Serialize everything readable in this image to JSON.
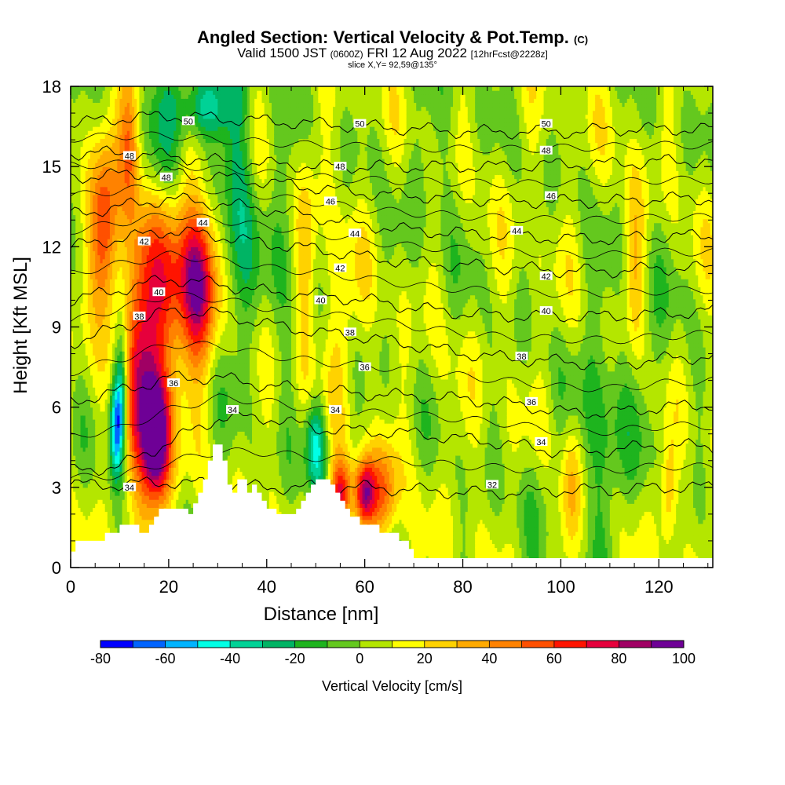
{
  "header": {
    "title_main": "Angled Section: Vertical Velocity & Pot.Temp.",
    "title_unit": "(C)",
    "valid_prefix": "Valid 1500 JST",
    "valid_z": "(0600Z)",
    "valid_date": "FRI 12 Aug 2022",
    "valid_fcst": "[12hrFcst@2228z]",
    "slice": "slice X,Y= 92,59@135°"
  },
  "chart_data": {
    "type": "heatmap",
    "title": "Angled Section: Vertical Velocity & Pot.Temp. (C)",
    "xlabel": "Distance [nm]",
    "ylabel": "Height [Kft MSL]",
    "xlim": [
      0,
      131
    ],
    "ylim": [
      0,
      18
    ],
    "x_ticks": [
      "0",
      "20",
      "40",
      "60",
      "80",
      "100",
      "120"
    ],
    "y_ticks": [
      "0",
      "3",
      "6",
      "9",
      "12",
      "15",
      "18"
    ],
    "x_tick_values": [
      0,
      20,
      40,
      60,
      80,
      100,
      120
    ],
    "y_tick_values": [
      0,
      3,
      6,
      9,
      12,
      15,
      18
    ],
    "colorbar": {
      "title": "Vertical Velocity [cm/s]",
      "min": -80,
      "max": 100,
      "step": 10,
      "labels": [
        "-80",
        "-60",
        "-40",
        "-20",
        "0",
        "20",
        "40",
        "60",
        "80",
        "100"
      ],
      "label_values": [
        -80,
        -60,
        -40,
        -20,
        0,
        20,
        40,
        60,
        80,
        100
      ],
      "colors": [
        "#0000ff",
        "#0064ff",
        "#00b4ff",
        "#00ffe6",
        "#00d296",
        "#00b464",
        "#1eb41e",
        "#64c81e",
        "#b4e600",
        "#ffff00",
        "#ffd200",
        "#ffaa00",
        "#ff8200",
        "#ff5000",
        "#ff1400",
        "#e6003c",
        "#a00064",
        "#6e0096"
      ]
    },
    "terrain": [
      [
        0,
        0.6
      ],
      [
        1,
        1.0
      ],
      [
        6,
        1.0
      ],
      [
        7,
        1.3
      ],
      [
        10,
        1.6
      ],
      [
        13,
        1.6
      ],
      [
        14,
        1.3
      ],
      [
        15,
        1.3
      ],
      [
        16,
        1.6
      ],
      [
        17,
        1.9
      ],
      [
        18,
        2.2
      ],
      [
        23,
        2.2
      ],
      [
        24,
        2.0
      ],
      [
        25,
        2.4
      ],
      [
        26,
        2.8
      ],
      [
        27,
        3.3
      ],
      [
        28,
        4.0
      ],
      [
        29,
        4.6
      ],
      [
        30,
        4.6
      ],
      [
        31,
        4.0
      ],
      [
        32,
        3.1
      ],
      [
        33,
        2.8
      ],
      [
        34,
        3.3
      ],
      [
        35,
        3.3
      ],
      [
        36,
        2.8
      ],
      [
        37,
        3.1
      ],
      [
        38,
        2.8
      ],
      [
        39,
        2.5
      ],
      [
        40,
        2.2
      ],
      [
        41,
        2.2
      ],
      [
        42,
        2.0
      ],
      [
        45,
        2.0
      ],
      [
        46,
        2.2
      ],
      [
        47,
        2.5
      ],
      [
        48,
        2.8
      ],
      [
        49,
        3.1
      ],
      [
        50,
        3.3
      ],
      [
        52,
        3.3
      ],
      [
        53,
        3.1
      ],
      [
        54,
        2.8
      ],
      [
        55,
        2.5
      ],
      [
        56,
        2.2
      ],
      [
        57,
        1.9
      ],
      [
        58,
        1.9
      ],
      [
        59,
        1.6
      ],
      [
        62,
        1.6
      ],
      [
        63,
        1.3
      ],
      [
        66,
        1.3
      ],
      [
        67,
        1.0
      ],
      [
        69,
        0.7
      ],
      [
        70,
        0.35
      ],
      [
        131,
        0.35
      ]
    ],
    "theta_contours": [
      {
        "label": "32",
        "levels": [
          3.1,
          3.1,
          3.2,
          3.1,
          3.0,
          3.0,
          3.0,
          2.9,
          2.8,
          2.8,
          2.9,
          2.9,
          3.0,
          3.0
        ]
      },
      {
        "label": "34",
        "levels": [
          3.6,
          3.8,
          4.7,
          5.6,
          5.6,
          5.2,
          5.1,
          5.0,
          4.8,
          4.6,
          4.3,
          4.4,
          4.6,
          4.5
        ]
      },
      {
        "label": "36",
        "levels": [
          6.2,
          6.6,
          7.1,
          7.1,
          6.8,
          6.6,
          6.5,
          6.4,
          6.3,
          6.1,
          5.8,
          5.8,
          6.0,
          6.1
        ]
      },
      {
        "label": "38",
        "levels": [
          8.4,
          9.0,
          9.6,
          9.5,
          9.1,
          8.8,
          8.6,
          8.3,
          8.0,
          7.8,
          7.7,
          7.6,
          7.8,
          7.9
        ]
      },
      {
        "label": "40",
        "levels": [
          10.0,
          10.4,
          10.8,
          10.6,
          10.3,
          10.2,
          10.0,
          9.7,
          9.5,
          9.4,
          9.4,
          9.4,
          9.5,
          9.6
        ]
      },
      {
        "label": "42",
        "levels": [
          12.0,
          12.3,
          12.6,
          12.4,
          12.1,
          11.9,
          11.6,
          11.4,
          11.3,
          11.2,
          11.1,
          11.1,
          11.2,
          11.2
        ]
      },
      {
        "label": "44",
        "levels": [
          13.2,
          13.5,
          13.8,
          13.6,
          13.4,
          13.1,
          12.8,
          12.6,
          12.5,
          12.4,
          12.3,
          12.3,
          12.4,
          12.4
        ]
      },
      {
        "label": "46",
        "levels": [
          14.6,
          14.7,
          14.8,
          14.6,
          14.4,
          14.2,
          14.0,
          13.9,
          13.8,
          13.7,
          13.7,
          13.7,
          13.8,
          13.8
        ]
      },
      {
        "label": "48",
        "levels": [
          15.5,
          15.5,
          15.4,
          15.2,
          15.1,
          15.0,
          15.0,
          15.0,
          15.0,
          15.0,
          15.1,
          15.1,
          15.2,
          15.2
        ]
      },
      {
        "label": "50",
        "levels": [
          16.6,
          16.8,
          16.9,
          16.8,
          16.7,
          16.6,
          16.5,
          16.4,
          16.3,
          16.3,
          16.3,
          16.4,
          16.4,
          16.4
        ]
      }
    ],
    "contour_labels": [
      {
        "text": "48",
        "x": 12,
        "y": 15.4
      },
      {
        "text": "48",
        "x": 19.5,
        "y": 14.6
      },
      {
        "text": "50",
        "x": 24,
        "y": 16.7
      },
      {
        "text": "42",
        "x": 15,
        "y": 12.2
      },
      {
        "text": "44",
        "x": 27,
        "y": 12.9
      },
      {
        "text": "40",
        "x": 18,
        "y": 10.3
      },
      {
        "text": "38",
        "x": 14,
        "y": 9.4
      },
      {
        "text": "36",
        "x": 21,
        "y": 6.9
      },
      {
        "text": "34",
        "x": 12,
        "y": 3.0
      },
      {
        "text": "34",
        "x": 33,
        "y": 5.9
      },
      {
        "text": "50",
        "x": 59,
        "y": 16.6
      },
      {
        "text": "48",
        "x": 55,
        "y": 15.0
      },
      {
        "text": "46",
        "x": 53,
        "y": 13.7
      },
      {
        "text": "44",
        "x": 58,
        "y": 12.5
      },
      {
        "text": "42",
        "x": 55,
        "y": 11.2
      },
      {
        "text": "40",
        "x": 51,
        "y": 10.0
      },
      {
        "text": "38",
        "x": 57,
        "y": 8.8
      },
      {
        "text": "36",
        "x": 60,
        "y": 7.5
      },
      {
        "text": "34",
        "x": 54,
        "y": 5.9
      },
      {
        "text": "50",
        "x": 97,
        "y": 16.6
      },
      {
        "text": "48",
        "x": 97,
        "y": 15.6
      },
      {
        "text": "46",
        "x": 98,
        "y": 13.9
      },
      {
        "text": "44",
        "x": 91,
        "y": 12.6
      },
      {
        "text": "42",
        "x": 97,
        "y": 10.9
      },
      {
        "text": "40",
        "x": 97,
        "y": 9.6
      },
      {
        "text": "38",
        "x": 92,
        "y": 7.9
      },
      {
        "text": "36",
        "x": 94,
        "y": 6.2
      },
      {
        "text": "34",
        "x": 96,
        "y": 4.7
      },
      {
        "text": "32",
        "x": 86,
        "y": 3.1
      }
    ],
    "velocity_features": [
      {
        "x": 17.5,
        "y": 4.8,
        "sx": 2.0,
        "sy": 1.6,
        "v": 95
      },
      {
        "x": 15,
        "y": 7.5,
        "sx": 2.8,
        "sy": 3.5,
        "v": 70
      },
      {
        "x": 7,
        "y": 12.5,
        "sx": 2.0,
        "sy": 2.5,
        "v": 55
      },
      {
        "x": 26,
        "y": 10.5,
        "sx": 2.5,
        "sy": 2.0,
        "v": 70
      },
      {
        "x": 21,
        "y": 11.0,
        "sx": 4.0,
        "sy": 2.5,
        "v": 45
      },
      {
        "x": 60,
        "y": 2.8,
        "sx": 1.5,
        "sy": 0.9,
        "v": 80
      },
      {
        "x": 55,
        "y": 2.8,
        "sx": 1.5,
        "sy": 0.9,
        "v": 65
      },
      {
        "x": 64,
        "y": 2.8,
        "sx": 2.0,
        "sy": 1.2,
        "v": 40
      },
      {
        "x": 12,
        "y": 16.0,
        "sx": 1.5,
        "sy": 2.0,
        "v": 40
      },
      {
        "x": 9.5,
        "y": 5.3,
        "sx": 1.0,
        "sy": 1.3,
        "v": -75
      },
      {
        "x": 10.5,
        "y": 7.0,
        "sx": 1.0,
        "sy": 1.5,
        "v": -45
      },
      {
        "x": 27,
        "y": 17.3,
        "sx": 4.0,
        "sy": 0.9,
        "v": -45
      },
      {
        "x": 19,
        "y": 15.5,
        "sx": 2.5,
        "sy": 2.5,
        "v": -25
      },
      {
        "x": 34,
        "y": 13.5,
        "sx": 2.5,
        "sy": 4.0,
        "v": -30
      },
      {
        "x": 44,
        "y": 12.0,
        "sx": 2.5,
        "sy": 3.5,
        "v": -15
      },
      {
        "x": 50,
        "y": 4.6,
        "sx": 1.5,
        "sy": 1.2,
        "v": -55
      },
      {
        "x": 108,
        "y": 5.0,
        "sx": 4.0,
        "sy": 3.5,
        "v": -20
      },
      {
        "x": 95,
        "y": 3.0,
        "sx": 3.0,
        "sy": 1.5,
        "v": -10
      },
      {
        "x": 118,
        "y": 8.0,
        "sx": 4.0,
        "sy": 3.0,
        "v": -10
      },
      {
        "x": 74,
        "y": 15.0,
        "sx": 5.0,
        "sy": 3.0,
        "v": -8
      },
      {
        "x": 48,
        "y": 11.0,
        "sx": 1.5,
        "sy": 3.0,
        "v": 25
      },
      {
        "x": 55,
        "y": 9.0,
        "sx": 2.5,
        "sy": 2.5,
        "v": 15
      },
      {
        "x": 115,
        "y": 11.0,
        "sx": 1.5,
        "sy": 2.5,
        "v": 25
      },
      {
        "x": 102,
        "y": 3.0,
        "sx": 1.5,
        "sy": 1.8,
        "v": 30
      },
      {
        "x": 122,
        "y": 2.8,
        "sx": 1.2,
        "sy": 1.5,
        "v": 30
      }
    ],
    "velocity_background": 6,
    "grid": false,
    "colorbar_position": "bottom"
  }
}
